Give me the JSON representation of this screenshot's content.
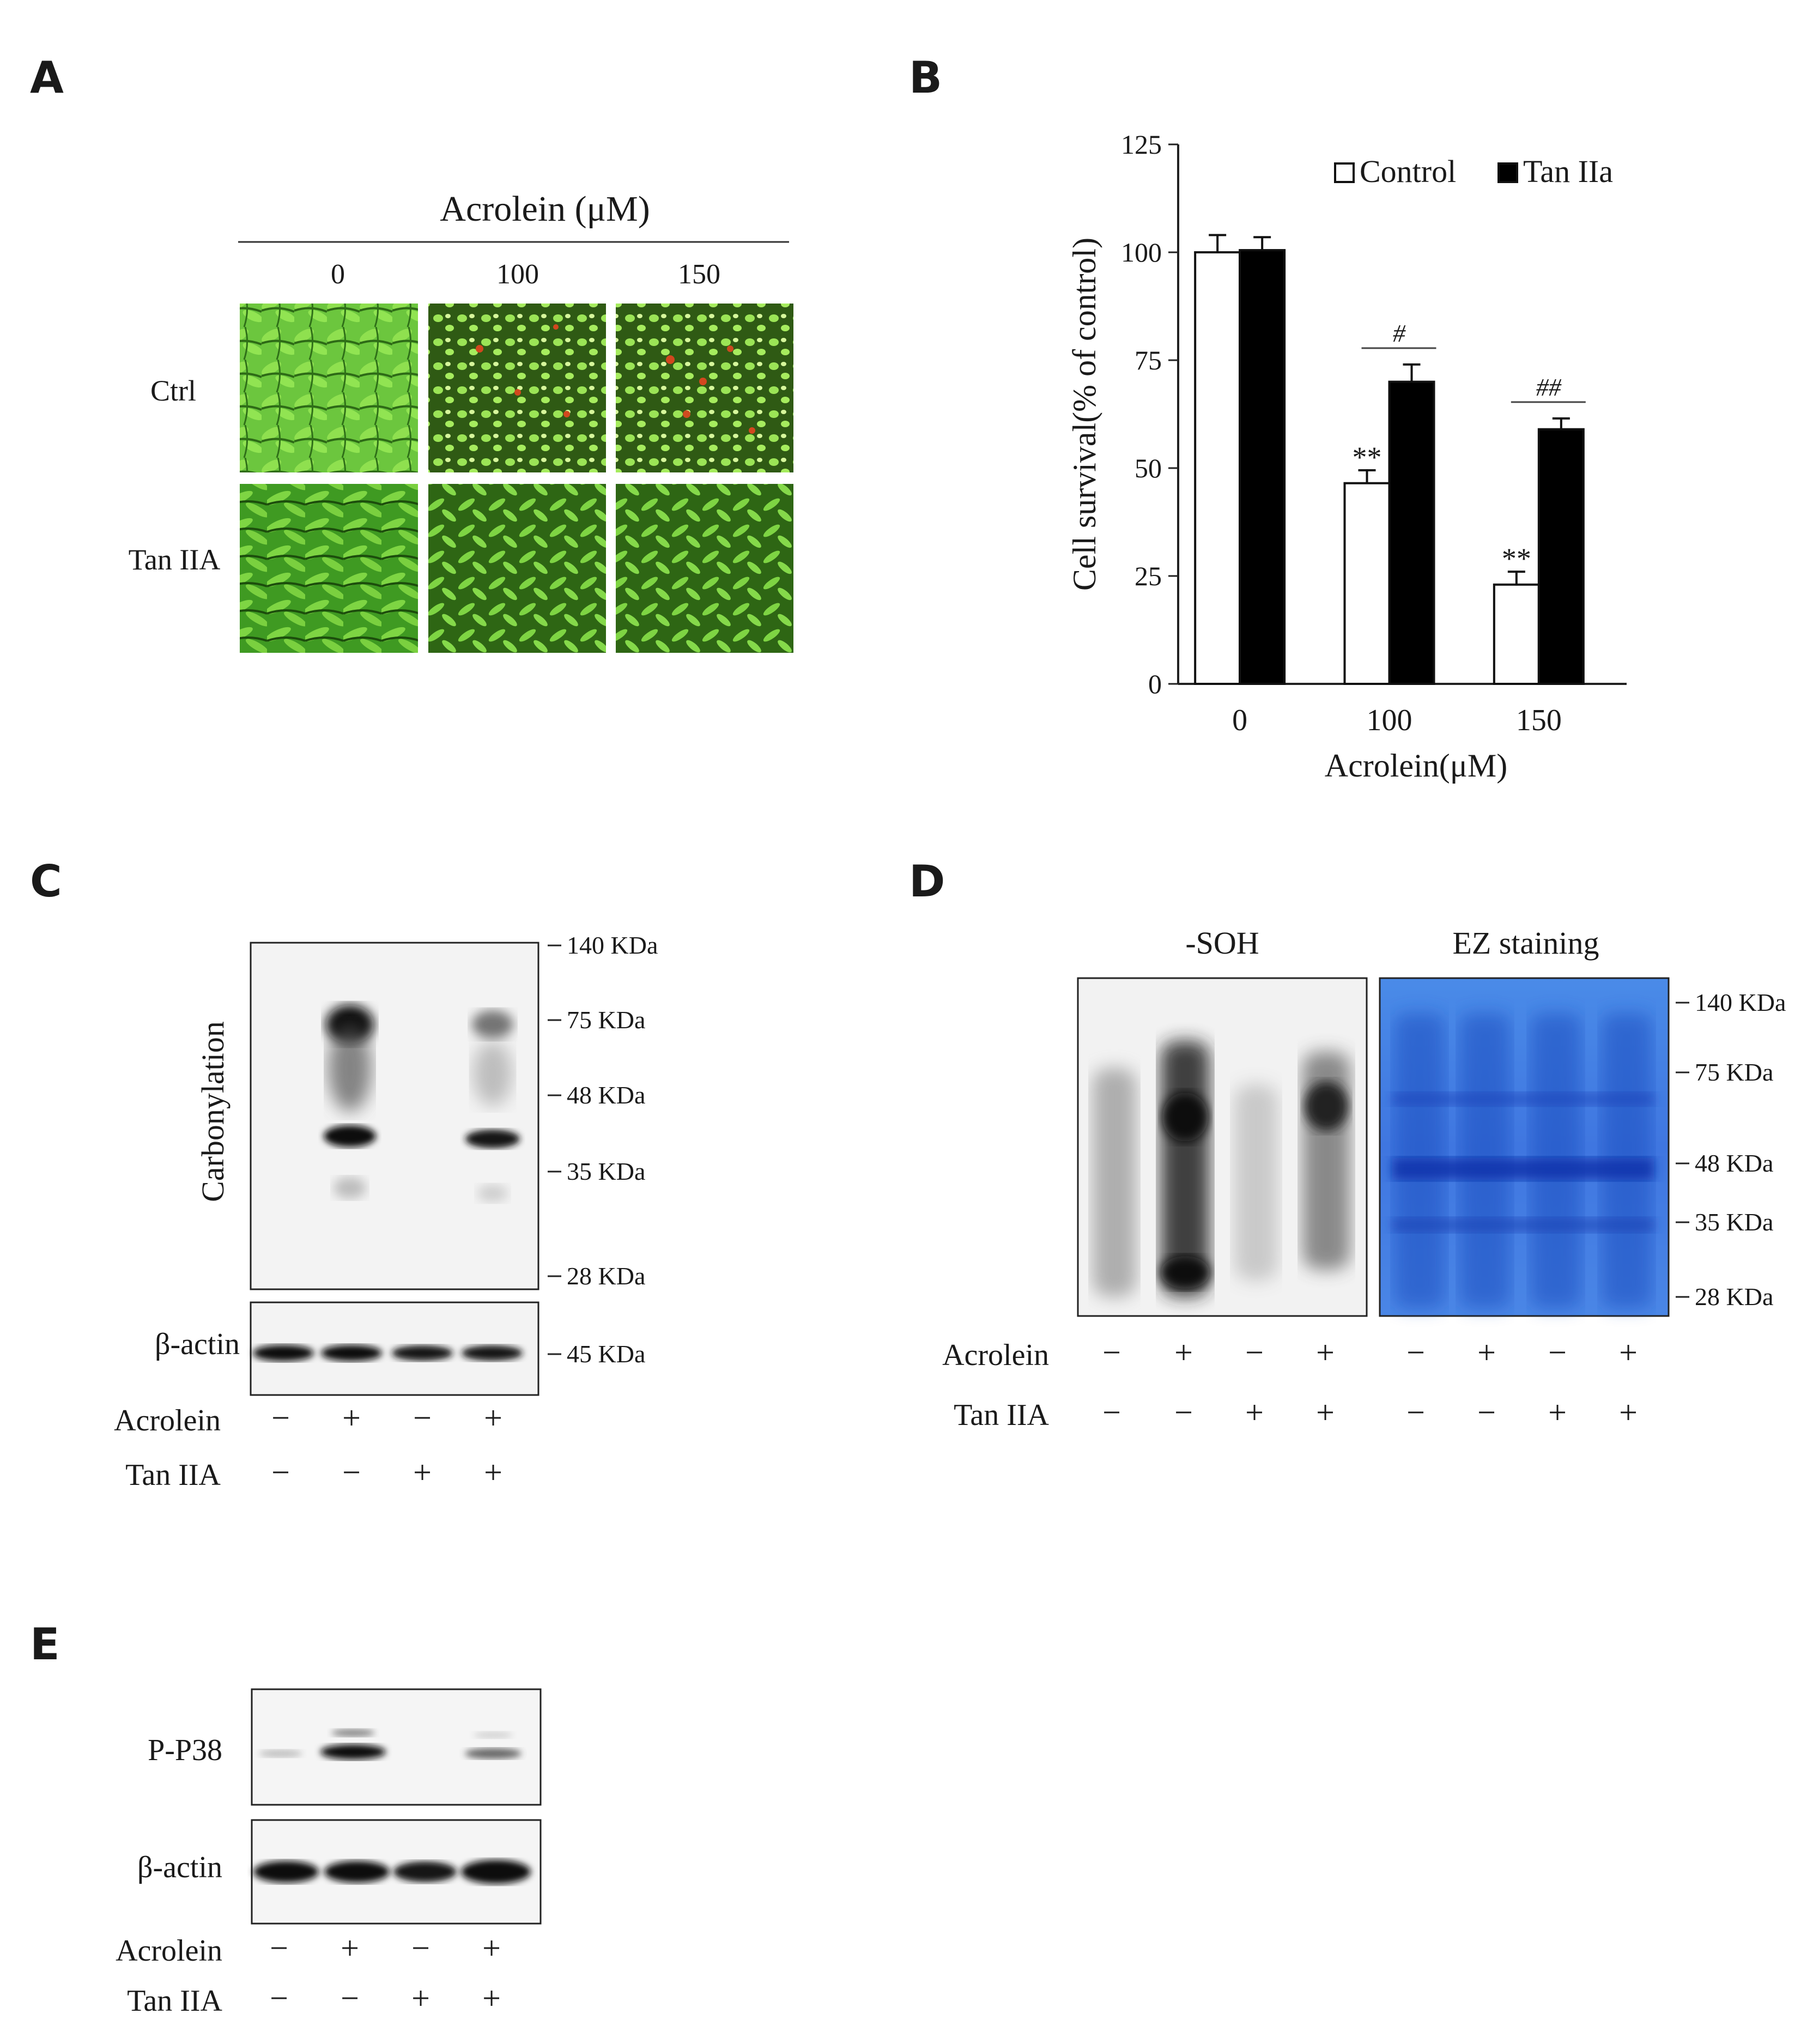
{
  "panels": {
    "A": {
      "letter": "A",
      "title": "Acrolein (μM)",
      "columns": [
        "0",
        "100",
        "150"
      ],
      "rows": [
        "Ctrl",
        "Tan IIA"
      ]
    },
    "B": {
      "letter": "B"
    },
    "C": {
      "letter": "C",
      "blot_label": "Carbonylation",
      "loading_label": "β-actin",
      "markers": [
        "140 KDa",
        "75 KDa",
        "48 KDa",
        "35 KDa",
        "28 KDa"
      ],
      "loading_marker": "45 KDa",
      "treatments": [
        {
          "name": "Acrolein",
          "values": [
            "−",
            "+",
            "−",
            "+"
          ]
        },
        {
          "name": "Tan IIA",
          "values": [
            "−",
            "−",
            "+",
            "+"
          ]
        }
      ]
    },
    "D": {
      "letter": "D",
      "blot1_title": "-SOH",
      "blot2_title": "EZ staining",
      "markers": [
        "140 KDa",
        "75 KDa",
        "48 KDa",
        "35 KDa",
        "28 KDa"
      ],
      "treatments": [
        {
          "name": "Acrolein",
          "values": [
            "−",
            "+",
            "−",
            "+",
            "−",
            "+",
            "−",
            "+"
          ]
        },
        {
          "name": "Tan IIA",
          "values": [
            "−",
            "−",
            "+",
            "+",
            "−",
            "−",
            "+",
            "+"
          ]
        }
      ]
    },
    "E": {
      "letter": "E",
      "blot_label": "P-P38",
      "loading_label": "β-actin",
      "treatments": [
        {
          "name": "Acrolein",
          "values": [
            "−",
            "+",
            "−",
            "+"
          ]
        },
        {
          "name": "Tan IIA",
          "values": [
            "−",
            "−",
            "+",
            "+"
          ]
        }
      ]
    }
  },
  "chart_data": {
    "type": "bar",
    "categories": [
      "0",
      "100",
      "150"
    ],
    "series": [
      {
        "name": "Control",
        "values": [
          100,
          46.5,
          23
        ],
        "errors": [
          4,
          3,
          3
        ],
        "color": "#ffffff"
      },
      {
        "name": "Tan IIa",
        "values": [
          100.5,
          70,
          59
        ],
        "errors": [
          3,
          4,
          2.5
        ],
        "color": "#000000"
      }
    ],
    "xlabel": "Acrolein(μM)",
    "ylabel": "Cell survival(% of control)",
    "ylim": [
      0,
      125
    ],
    "yticks": [
      "0",
      "25",
      "50",
      "75",
      "100",
      "125"
    ],
    "legend_position": "top-right",
    "annotations": [
      {
        "category": "100",
        "series": "Control",
        "text": "**"
      },
      {
        "category": "150",
        "series": "Control",
        "text": "**"
      },
      {
        "category": "100",
        "series": "Tan IIa",
        "text": "#",
        "bracket": true
      },
      {
        "category": "150",
        "series": "Tan IIa",
        "text": "##",
        "bracket": true
      }
    ]
  }
}
